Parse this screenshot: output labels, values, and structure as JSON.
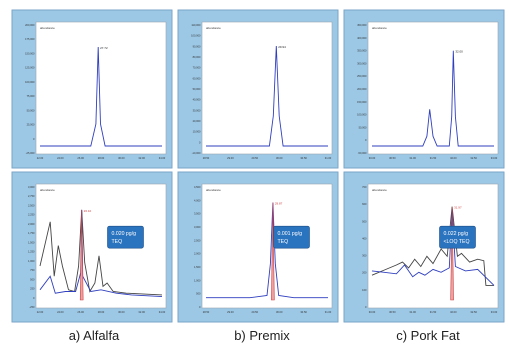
{
  "colors": {
    "frame_bg": "#9cc8e6",
    "plot_bg": "#ffffff",
    "trace_blue": "#2f3fbf",
    "trace_dark": "#444444",
    "peak_fill": "#e98a8a",
    "label_red": "#d04040",
    "teq_box": "#2a73bf",
    "teq_text": "#ffffff"
  },
  "captions": [
    "a) Alfalfa",
    "b) Premix",
    "c) Pork Fat"
  ],
  "chart_data": [
    {
      "type": "line",
      "panel": "a-top",
      "ylim": [
        0,
        200000
      ],
      "yticks": [
        "200,000",
        "175,000",
        "150,000",
        "125,000",
        "100,000",
        "75,000",
        "50,000",
        "25,000",
        "0",
        "-25,000"
      ],
      "xlim": [
        22.0,
        34.0
      ],
      "xticks": [
        "22.00",
        "24.00",
        "26.00",
        "28.00",
        "30.00",
        "32.00",
        "34.00"
      ],
      "peak_label": "27.72",
      "legend": "abundance",
      "series": [
        {
          "x": [
            22.0,
            27.0,
            27.5,
            27.72,
            27.95,
            28.4,
            34.0
          ],
          "y": [
            0,
            0,
            40000,
            180000,
            40000,
            0,
            0
          ]
        }
      ]
    },
    {
      "type": "line",
      "panel": "b-top",
      "ylim": [
        0,
        110000
      ],
      "yticks": [
        "110,000",
        "100,000",
        "90,000",
        "80,000",
        "70,000",
        "60,000",
        "50,000",
        "40,000",
        "30,000",
        "20,000",
        "10,000",
        "0",
        "-10,000"
      ],
      "xlim": [
        28.5,
        31.0
      ],
      "xticks": [
        "28.50",
        "29.00",
        "29.50",
        "30.00",
        "30.50",
        "31.00"
      ],
      "peak_label": "29.94",
      "legend": "abundance",
      "series": [
        {
          "x": [
            28.5,
            29.8,
            29.88,
            29.94,
            30.0,
            30.08,
            31.0
          ],
          "y": [
            0,
            0,
            30000,
            100000,
            30000,
            0,
            0
          ]
        }
      ]
    },
    {
      "type": "line",
      "panel": "c-top",
      "ylim": [
        0,
        450000
      ],
      "yticks": [
        "450,000",
        "400,000",
        "350,000",
        "300,000",
        "250,000",
        "200,000",
        "150,000",
        "100,000",
        "50,000",
        "0",
        "-50,000"
      ],
      "xlim": [
        30.0,
        33.0
      ],
      "xticks": [
        "30.00",
        "30.50",
        "31.00",
        "31.50",
        "32.00",
        "32.50",
        "33.00"
      ],
      "peak_label": "32.00",
      "legend": "abundance",
      "series": [
        {
          "x": [
            30.0,
            31.25,
            31.35,
            31.42,
            31.5,
            31.6,
            31.9,
            31.96,
            32.0,
            32.05,
            32.12,
            33.0
          ],
          "y": [
            0,
            0,
            40000,
            150000,
            40000,
            0,
            0,
            120000,
            390000,
            120000,
            0,
            0
          ]
        }
      ]
    },
    {
      "type": "line",
      "panel": "a-bottom",
      "ylim": [
        0,
        3000
      ],
      "yticks": [
        "3,000",
        "2,750",
        "2,500",
        "2,250",
        "2,000",
        "1,750",
        "1,500",
        "1,250",
        "1,000",
        "750",
        "500",
        "250",
        "0",
        "-250"
      ],
      "xlim": [
        22.0,
        34.0
      ],
      "xticks": [
        "22.00",
        "24.00",
        "26.00",
        "28.00",
        "30.00",
        "32.00",
        "34.00"
      ],
      "peak_label": "26.10",
      "legend": "abundance",
      "teq": [
        "0.020 pg/g",
        "TEQ"
      ],
      "series": [
        {
          "x": [
            22.0,
            23.0,
            23.4,
            23.8,
            24.2,
            24.8,
            25.4,
            25.8,
            26.1,
            26.4,
            26.9,
            27.4,
            27.8,
            28.2,
            28.6,
            29.2,
            30.5,
            34.0
          ],
          "y": [
            1000,
            2300,
            700,
            1600,
            1000,
            300,
            250,
            1000,
            2650,
            1100,
            250,
            500,
            1300,
            400,
            500,
            250,
            200,
            150
          ]
        },
        {
          "x": [
            22.0,
            23.0,
            23.5,
            24.5,
            25.5,
            26.0,
            26.1,
            26.2,
            27.0,
            28.0,
            29.5,
            31.0,
            34.0
          ],
          "y": [
            300,
            700,
            200,
            250,
            250,
            800,
            2650,
            700,
            250,
            300,
            200,
            150,
            100
          ]
        }
      ]
    },
    {
      "type": "line",
      "panel": "b-bottom",
      "ylim": [
        0,
        4500
      ],
      "yticks": [
        "4,500",
        "4,000",
        "3,500",
        "3,000",
        "2,500",
        "2,000",
        "1,500",
        "1,000",
        "500",
        "0"
      ],
      "xlim": [
        28.5,
        31.0
      ],
      "xticks": [
        "28.50",
        "29.00",
        "29.50",
        "30.00",
        "30.50",
        "31.00"
      ],
      "peak_label": "29.87",
      "legend": "abundance",
      "teq": [
        "0.001 pg/g",
        "TEQ"
      ],
      "series": [
        {
          "x": [
            28.5,
            29.4,
            29.75,
            29.82,
            29.87,
            29.92,
            29.99,
            30.3,
            31.0
          ],
          "y": [
            100,
            100,
            200,
            1600,
            4300,
            1600,
            200,
            100,
            100
          ]
        }
      ]
    },
    {
      "type": "line",
      "panel": "c-bottom",
      "ylim": [
        0,
        700
      ],
      "yticks": [
        "700",
        "600",
        "500",
        "400",
        "300",
        "200",
        "100",
        "0"
      ],
      "xlim": [
        30.0,
        33.0
      ],
      "xticks": [
        "30.00",
        "30.50",
        "31.00",
        "31.50",
        "32.00",
        "32.50",
        "33.00"
      ],
      "peak_label": "31.97",
      "legend": "abundance",
      "teq": [
        "0.022 pg/g",
        "<LOQ TEQ"
      ],
      "series": [
        {
          "x": [
            30.0,
            30.6,
            30.75,
            30.9,
            31.05,
            31.2,
            31.35,
            31.5,
            31.7,
            31.85,
            31.97,
            32.1,
            32.2,
            32.4,
            32.6,
            32.75,
            32.8,
            33.0
          ],
          "y": [
            170,
            240,
            260,
            220,
            280,
            230,
            300,
            250,
            350,
            300,
            640,
            300,
            320,
            260,
            280,
            270,
            100,
            100
          ]
        },
        {
          "x": [
            30.0,
            30.6,
            30.8,
            31.0,
            31.15,
            31.3,
            31.5,
            31.7,
            31.9,
            31.97,
            32.05,
            32.3,
            32.6,
            33.0
          ],
          "y": [
            200,
            180,
            240,
            160,
            190,
            170,
            210,
            190,
            220,
            620,
            230,
            200,
            210,
            100
          ]
        }
      ]
    }
  ]
}
